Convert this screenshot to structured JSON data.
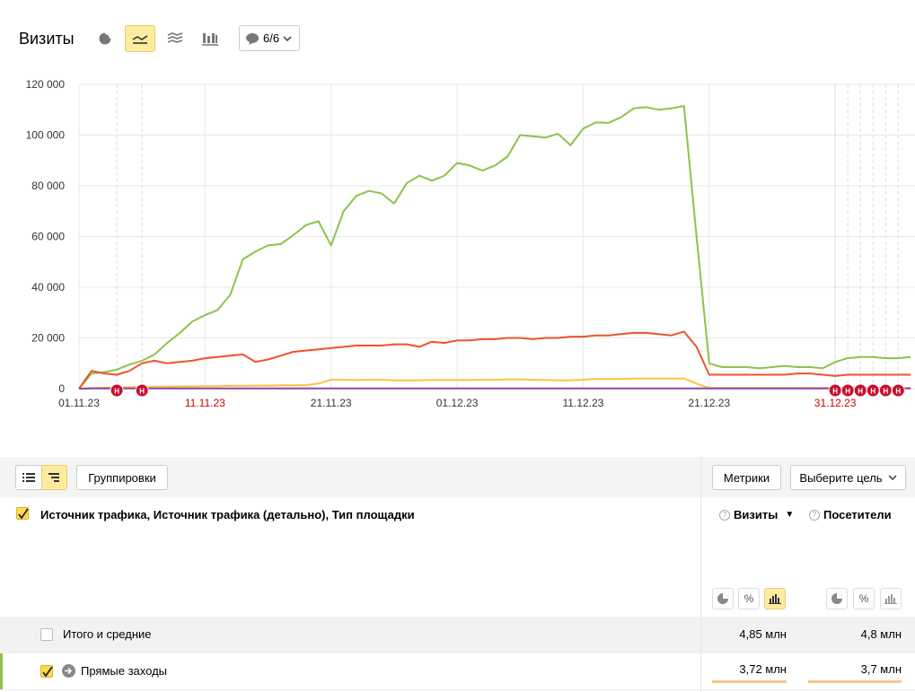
{
  "header": {
    "title": "Визиты",
    "notes_label": "6/6"
  },
  "chart_data": {
    "type": "line",
    "y_ticks": [
      "120 000",
      "100 000",
      "80 000",
      "60 000",
      "40 000",
      "20 000",
      "0"
    ],
    "x_ticks": [
      {
        "label": "01.11.23",
        "holiday": false,
        "day": 0
      },
      {
        "label": "11.11.23",
        "holiday": true,
        "day": 10
      },
      {
        "label": "21.11.23",
        "holiday": false,
        "day": 20
      },
      {
        "label": "01.12.23",
        "holiday": false,
        "day": 30
      },
      {
        "label": "11.12.23",
        "holiday": false,
        "day": 40
      },
      {
        "label": "21.12.23",
        "holiday": false,
        "day": 50
      },
      {
        "label": "31.12.23",
        "holiday": true,
        "day": 60
      }
    ],
    "ylim": [
      0,
      120000
    ],
    "xlim": [
      0,
      66
    ],
    "holiday_days": [
      3,
      5,
      60,
      61,
      62,
      63,
      64,
      65
    ],
    "series": [
      {
        "color": "#8cc34b",
        "values": [
          0,
          6000,
          6500,
          7500,
          9500,
          11000,
          13500,
          18000,
          22000,
          26500,
          29000,
          31000,
          37000,
          51000,
          54000,
          56500,
          57000,
          60500,
          64500,
          66000,
          56500,
          70000,
          76000,
          78000,
          77000,
          73000,
          81000,
          84000,
          82000,
          84000,
          89000,
          88000,
          86000,
          88000,
          91500,
          100000,
          99500,
          99000,
          100500,
          96000,
          102500,
          105000,
          104800,
          107000,
          110500,
          111000,
          110000,
          110500,
          111500,
          60000,
          10000,
          8500,
          8500,
          8500,
          8000,
          8500,
          9000,
          8500,
          8500,
          8000,
          10500,
          12000,
          12500,
          12500,
          12000,
          12000,
          12500
        ]
      },
      {
        "color": "#f0522b",
        "values": [
          0,
          7000,
          6000,
          5500,
          7000,
          10000,
          11000,
          10000,
          10500,
          11000,
          12000,
          12500,
          13000,
          13500,
          10500,
          11500,
          13000,
          14500,
          15000,
          15500,
          16000,
          16500,
          17000,
          17000,
          17000,
          17500,
          17500,
          16500,
          18500,
          18000,
          19000,
          19000,
          19500,
          19500,
          20000,
          20000,
          19500,
          20000,
          20000,
          20500,
          20500,
          21000,
          21000,
          21500,
          22000,
          22000,
          21500,
          21000,
          22500,
          16500,
          5500,
          5500,
          5500,
          5500,
          5500,
          5500,
          5500,
          6000,
          6000,
          5500,
          5000,
          5500,
          5500,
          5500,
          5500,
          5500,
          5500
        ]
      },
      {
        "color": "#ffc13d",
        "values": [
          0,
          300,
          400,
          500,
          600,
          700,
          800,
          800,
          900,
          900,
          1000,
          1000,
          1100,
          1100,
          1200,
          1200,
          1300,
          1300,
          1400,
          2000,
          3500,
          3500,
          3400,
          3500,
          3500,
          3300,
          3300,
          3300,
          3400,
          3400,
          3400,
          3400,
          3500,
          3500,
          3600,
          3600,
          3500,
          3400,
          3300,
          3300,
          3500,
          3800,
          3800,
          3800,
          4000,
          4000,
          4000,
          4000,
          4000,
          2000,
          300,
          300,
          300,
          300,
          300,
          300,
          300,
          300,
          300,
          300,
          300,
          300,
          300,
          300,
          300,
          300,
          300
        ]
      },
      {
        "color": "#8e44ad",
        "values": [
          0,
          100,
          100,
          100,
          100,
          100,
          100,
          100,
          100,
          100,
          100,
          100,
          100,
          100,
          100,
          100,
          100,
          100,
          100,
          100,
          100,
          100,
          100,
          100,
          100,
          100,
          100,
          100,
          100,
          100,
          100,
          100,
          100,
          100,
          100,
          100,
          100,
          100,
          100,
          100,
          100,
          100,
          100,
          100,
          100,
          100,
          100,
          100,
          100,
          100,
          100,
          100,
          100,
          100,
          100,
          100,
          100,
          100,
          100,
          100,
          100,
          100,
          100,
          100,
          100,
          100,
          100
        ]
      }
    ]
  },
  "holiday_marker": "Н",
  "table": {
    "groupings_label": "Группировки",
    "metrics_label": "Метрики",
    "goal_label": "Выберите цель",
    "dimension_title": "Источник трафика, Источник трафика (детально), Тип площадки",
    "col_visits": "Визиты",
    "col_visits_sort": "▼",
    "col_visitors": "Посетители",
    "help_glyph": "?",
    "rows": [
      {
        "label": "Итого и средние",
        "visits": "4,85 млн",
        "visitors": "4,8 млн"
      },
      {
        "label": "Прямые заходы",
        "visits": "3,72 млн",
        "visitors": "3,7 млн"
      }
    ]
  },
  "colors": {
    "accent": "#ffeba0",
    "green": "#8cc34b",
    "red": "#f0522b",
    "yellow": "#ffc13d",
    "bar_hint": "#f8c58a"
  }
}
